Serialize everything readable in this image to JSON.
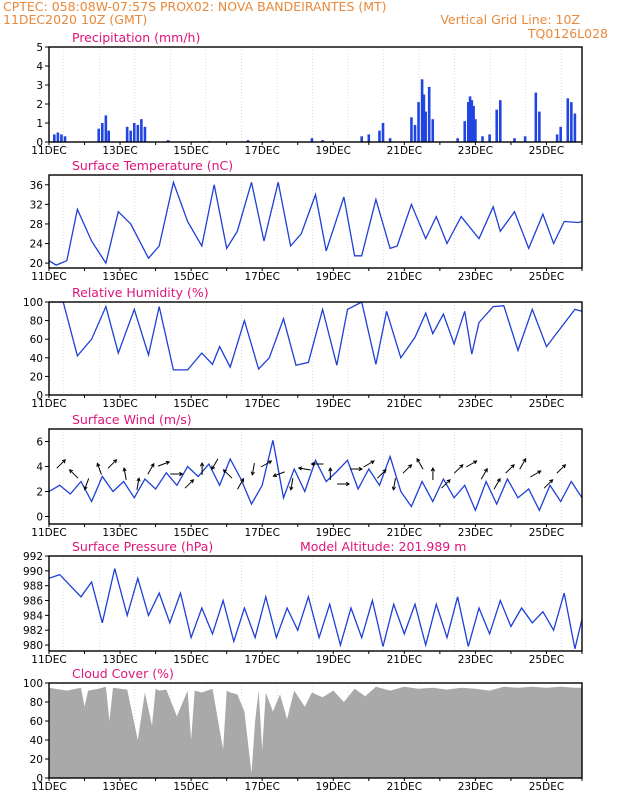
{
  "header": {
    "left_line1": "CPTEC:   058:08W-07:57S   PROX02: NOVA BANDEIRANTES (MT)",
    "left_line2": "11DEC2020 10Z (GMT)",
    "right_line2": "Vertical Grid Line: 10Z",
    "right_line3": "TQ0126L028",
    "color": "#e8893a"
  },
  "colors": {
    "title": "#e0147a",
    "line": "#1f3fd6",
    "bar": "#2145e0",
    "cloud": "#a9a9a9"
  },
  "chart_data": [
    {
      "type": "bar",
      "title": "Precipitation (mm/h)",
      "ylim": [
        0,
        5
      ],
      "yticks": [
        "0",
        "1",
        "2",
        "3",
        "4",
        "5"
      ],
      "xticks": [
        "11DEC",
        "13DEC",
        "15DEC",
        "17DEC",
        "19DEC",
        "21DEC",
        "23DEC",
        "25DEC"
      ],
      "x_start_day": 11,
      "x_days": 15,
      "values": [
        {
          "x": 11.15,
          "y": 0.4
        },
        {
          "x": 11.25,
          "y": 0.5
        },
        {
          "x": 11.35,
          "y": 0.4
        },
        {
          "x": 11.45,
          "y": 0.3
        },
        {
          "x": 12.4,
          "y": 0.7
        },
        {
          "x": 12.5,
          "y": 1.0
        },
        {
          "x": 12.6,
          "y": 1.4
        },
        {
          "x": 12.68,
          "y": 0.6
        },
        {
          "x": 13.2,
          "y": 0.8
        },
        {
          "x": 13.3,
          "y": 0.6
        },
        {
          "x": 13.4,
          "y": 1.0
        },
        {
          "x": 13.5,
          "y": 0.9
        },
        {
          "x": 13.6,
          "y": 1.2
        },
        {
          "x": 13.7,
          "y": 0.8
        },
        {
          "x": 14.35,
          "y": 0.1
        },
        {
          "x": 15.5,
          "y": 0.05
        },
        {
          "x": 16.6,
          "y": 0.1
        },
        {
          "x": 18.4,
          "y": 0.2
        },
        {
          "x": 18.7,
          "y": 0.1
        },
        {
          "x": 19.8,
          "y": 0.3
        },
        {
          "x": 20.0,
          "y": 0.4
        },
        {
          "x": 20.3,
          "y": 0.6
        },
        {
          "x": 20.4,
          "y": 1.0
        },
        {
          "x": 20.6,
          "y": 0.2
        },
        {
          "x": 21.2,
          "y": 1.3
        },
        {
          "x": 21.3,
          "y": 0.9
        },
        {
          "x": 21.4,
          "y": 2.1
        },
        {
          "x": 21.5,
          "y": 3.3
        },
        {
          "x": 21.55,
          "y": 2.5
        },
        {
          "x": 21.6,
          "y": 1.6
        },
        {
          "x": 21.7,
          "y": 2.9
        },
        {
          "x": 21.8,
          "y": 1.2
        },
        {
          "x": 22.5,
          "y": 0.2
        },
        {
          "x": 22.7,
          "y": 1.1
        },
        {
          "x": 22.8,
          "y": 2.1
        },
        {
          "x": 22.85,
          "y": 2.4
        },
        {
          "x": 22.9,
          "y": 2.2
        },
        {
          "x": 22.95,
          "y": 1.9
        },
        {
          "x": 23.0,
          "y": 1.2
        },
        {
          "x": 23.2,
          "y": 0.3
        },
        {
          "x": 23.4,
          "y": 0.4
        },
        {
          "x": 23.6,
          "y": 1.7
        },
        {
          "x": 23.7,
          "y": 2.2
        },
        {
          "x": 24.1,
          "y": 0.2
        },
        {
          "x": 24.4,
          "y": 0.3
        },
        {
          "x": 24.7,
          "y": 2.6
        },
        {
          "x": 24.8,
          "y": 1.6
        },
        {
          "x": 25.3,
          "y": 0.4
        },
        {
          "x": 25.4,
          "y": 0.8
        },
        {
          "x": 25.6,
          "y": 2.3
        },
        {
          "x": 25.7,
          "y": 2.1
        },
        {
          "x": 25.8,
          "y": 1.5
        }
      ]
    },
    {
      "type": "line",
      "title": "Surface Temperature (nC)",
      "ylim": [
        19,
        38
      ],
      "yticks": [
        "20",
        "24",
        "28",
        "32",
        "36"
      ],
      "ytick_values": [
        20,
        24,
        28,
        32,
        36
      ],
      "xticks": [
        "11DEC",
        "13DEC",
        "15DEC",
        "17DEC",
        "19DEC",
        "21DEC",
        "23DEC",
        "25DEC"
      ],
      "x": [
        11.0,
        11.2,
        11.5,
        11.8,
        12.2,
        12.6,
        12.95,
        13.3,
        13.8,
        14.1,
        14.5,
        14.9,
        15.3,
        15.65,
        16.0,
        16.3,
        16.7,
        17.05,
        17.45,
        17.8,
        18.1,
        18.5,
        18.8,
        19.3,
        19.6,
        19.8,
        20.2,
        20.6,
        20.8,
        21.2,
        21.6,
        21.9,
        22.2,
        22.6,
        23.1,
        23.5,
        23.7,
        24.1,
        24.5,
        24.9,
        25.2,
        25.5,
        25.9,
        26.0
      ],
      "values": [
        20.5,
        19.6,
        20.5,
        31.0,
        24.5,
        20.0,
        30.5,
        28.0,
        21.0,
        23.5,
        36.5,
        28.5,
        23.5,
        36.0,
        23.0,
        26.5,
        36.5,
        24.5,
        36.5,
        23.5,
        26.0,
        34.0,
        22.5,
        33.5,
        21.5,
        21.5,
        33.0,
        23.0,
        23.5,
        32.0,
        25.0,
        29.5,
        24.0,
        29.5,
        25.0,
        31.5,
        26.5,
        30.5,
        23.0,
        30.0,
        24.0,
        28.5,
        28.3,
        28.5
      ]
    },
    {
      "type": "line",
      "title": "Relative Humidity (%)",
      "ylim": [
        0,
        100
      ],
      "yticks": [
        "0",
        "20",
        "40",
        "60",
        "80",
        "100"
      ],
      "ytick_values": [
        0,
        20,
        40,
        60,
        80,
        100
      ],
      "xticks": [
        "11DEC",
        "13DEC",
        "15DEC",
        "17DEC",
        "19DEC",
        "21DEC",
        "23DEC",
        "25DEC"
      ],
      "x": [
        11.0,
        11.4,
        11.8,
        12.2,
        12.6,
        12.95,
        13.4,
        13.8,
        14.1,
        14.5,
        14.9,
        15.3,
        15.6,
        15.8,
        16.1,
        16.5,
        16.9,
        17.2,
        17.6,
        17.95,
        18.3,
        18.7,
        19.1,
        19.4,
        19.8,
        20.2,
        20.5,
        20.9,
        21.3,
        21.6,
        21.8,
        22.1,
        22.4,
        22.7,
        22.9,
        23.1,
        23.5,
        23.8,
        24.2,
        24.6,
        25.0,
        25.4,
        25.8,
        26.0
      ],
      "values": [
        100,
        100,
        42,
        60,
        95,
        45,
        92,
        43,
        95,
        27,
        27,
        45,
        33,
        52,
        30,
        80,
        28,
        40,
        82,
        32,
        35,
        92,
        32,
        92,
        100,
        33,
        90,
        40,
        62,
        88,
        66,
        87,
        55,
        90,
        44,
        78,
        95,
        96,
        48,
        92,
        52,
        72,
        92,
        90
      ]
    },
    {
      "type": "line",
      "title": "Surface Wind (m/s)",
      "ylim": [
        -0.6,
        7.0
      ],
      "yticks": [
        "0",
        "2",
        "4",
        "6"
      ],
      "ytick_values": [
        0,
        2,
        4,
        6
      ],
      "xticks": [
        "11DEC",
        "13DEC",
        "15DEC",
        "17DEC",
        "19DEC",
        "21DEC",
        "23DEC",
        "25DEC"
      ],
      "x": [
        11.0,
        11.3,
        11.6,
        11.9,
        12.2,
        12.5,
        12.8,
        13.1,
        13.4,
        13.7,
        14.0,
        14.3,
        14.6,
        14.9,
        15.2,
        15.5,
        15.8,
        16.1,
        16.4,
        16.7,
        17.0,
        17.3,
        17.6,
        17.9,
        18.2,
        18.5,
        18.8,
        19.1,
        19.4,
        19.7,
        20.0,
        20.3,
        20.6,
        20.9,
        21.2,
        21.5,
        21.8,
        22.1,
        22.4,
        22.7,
        23.0,
        23.3,
        23.6,
        23.9,
        24.2,
        24.5,
        24.8,
        25.1,
        25.4,
        25.7,
        26.0
      ],
      "values": [
        2.0,
        2.5,
        1.8,
        2.8,
        1.2,
        3.2,
        2.0,
        2.8,
        1.5,
        3.0,
        2.2,
        3.5,
        2.5,
        4.0,
        3.2,
        4.2,
        2.5,
        4.6,
        3.0,
        1.0,
        2.5,
        6.1,
        1.5,
        3.8,
        2.0,
        4.5,
        2.8,
        3.6,
        4.5,
        2.2,
        3.8,
        2.5,
        4.8,
        2.0,
        0.8,
        2.8,
        1.2,
        3.0,
        1.5,
        2.5,
        0.5,
        2.8,
        1.0,
        3.0,
        1.5,
        2.2,
        0.5,
        2.5,
        1.2,
        2.8,
        1.5
      ],
      "arrows_deg": [
        -45,
        -135,
        110,
        -110,
        -45,
        -100,
        -80,
        -60,
        -20,
        0,
        -45,
        -90,
        120,
        -135,
        -60,
        100,
        -30,
        160,
        100,
        -170,
        180,
        -90,
        0,
        0,
        -30,
        -45,
        100,
        -45,
        -120,
        -90,
        -45,
        -45,
        -30,
        -60,
        -60,
        -45,
        -60,
        -30,
        -45,
        -45
      ]
    },
    {
      "type": "line",
      "title": "Surface Pressure (hPa)",
      "annotation": "Model Altitude: 201.989 m",
      "ylim": [
        979.2,
        992
      ],
      "yticks": [
        "980",
        "982",
        "984",
        "986",
        "988",
        "990",
        "992"
      ],
      "ytick_values": [
        980,
        982,
        984,
        986,
        988,
        990,
        992
      ],
      "xticks": [
        "11DEC",
        "13DEC",
        "15DEC",
        "17DEC",
        "19DEC",
        "21DEC",
        "23DEC",
        "25DEC"
      ],
      "x": [
        11.0,
        11.3,
        11.6,
        11.9,
        12.2,
        12.5,
        12.85,
        13.2,
        13.5,
        13.8,
        14.1,
        14.4,
        14.7,
        15.0,
        15.3,
        15.6,
        15.9,
        16.2,
        16.5,
        16.8,
        17.1,
        17.4,
        17.7,
        18.0,
        18.3,
        18.6,
        18.9,
        19.2,
        19.5,
        19.8,
        20.1,
        20.4,
        20.7,
        21.0,
        21.3,
        21.6,
        21.9,
        22.2,
        22.5,
        22.8,
        23.1,
        23.4,
        23.7,
        24.0,
        24.3,
        24.6,
        24.9,
        25.2,
        25.5,
        25.8,
        26.0
      ],
      "values": [
        989.0,
        989.5,
        988.0,
        986.5,
        988.5,
        983.0,
        990.3,
        984.0,
        989.0,
        984.0,
        987.0,
        983.0,
        987.0,
        981.0,
        985.0,
        981.5,
        986.0,
        980.5,
        985.0,
        981.0,
        986.5,
        981.0,
        985.0,
        982.0,
        986.5,
        981.0,
        985.5,
        980.0,
        985.0,
        981.0,
        986.0,
        979.8,
        985.5,
        981.5,
        985.5,
        980.0,
        985.5,
        981.0,
        986.5,
        979.8,
        985.0,
        981.5,
        986.0,
        982.5,
        985.0,
        983.0,
        984.5,
        982.0,
        987.0,
        979.5,
        983.5
      ]
    },
    {
      "type": "area",
      "title": "Cloud Cover (%)",
      "ylim": [
        0,
        100
      ],
      "yticks": [
        "0",
        "20",
        "40",
        "60",
        "80",
        "100"
      ],
      "ytick_values": [
        0,
        20,
        40,
        60,
        80,
        100
      ],
      "xticks": [
        "11DEC",
        "13DEC",
        "15DEC",
        "17DEC",
        "19DEC",
        "21DEC",
        "23DEC",
        "25DEC"
      ],
      "x": [
        11.0,
        11.5,
        11.9,
        12.0,
        12.1,
        12.4,
        12.6,
        12.7,
        12.8,
        13.0,
        13.2,
        13.5,
        13.7,
        13.9,
        14.0,
        14.1,
        14.3,
        14.6,
        14.9,
        15.0,
        15.1,
        15.3,
        15.6,
        15.9,
        16.0,
        16.1,
        16.3,
        16.5,
        16.7,
        16.8,
        16.9,
        17.0,
        17.1,
        17.3,
        17.5,
        17.7,
        17.9,
        18.2,
        18.4,
        18.7,
        19.0,
        19.3,
        19.6,
        19.9,
        20.2,
        20.6,
        21.0,
        21.4,
        21.8,
        22.2,
        22.6,
        23.0,
        23.4,
        23.8,
        24.2,
        24.6,
        25.0,
        25.4,
        25.8,
        26.0
      ],
      "values": [
        95,
        92,
        95,
        75,
        92,
        94,
        96,
        60,
        95,
        94,
        93,
        40,
        90,
        55,
        94,
        92,
        93,
        65,
        92,
        40,
        92,
        90,
        94,
        30,
        92,
        90,
        88,
        70,
        5,
        60,
        92,
        30,
        90,
        70,
        88,
        62,
        92,
        75,
        90,
        85,
        92,
        80,
        94,
        86,
        96,
        92,
        96,
        94,
        95,
        93,
        95,
        94,
        92,
        96,
        95,
        96,
        95,
        96,
        95,
        95
      ]
    }
  ]
}
